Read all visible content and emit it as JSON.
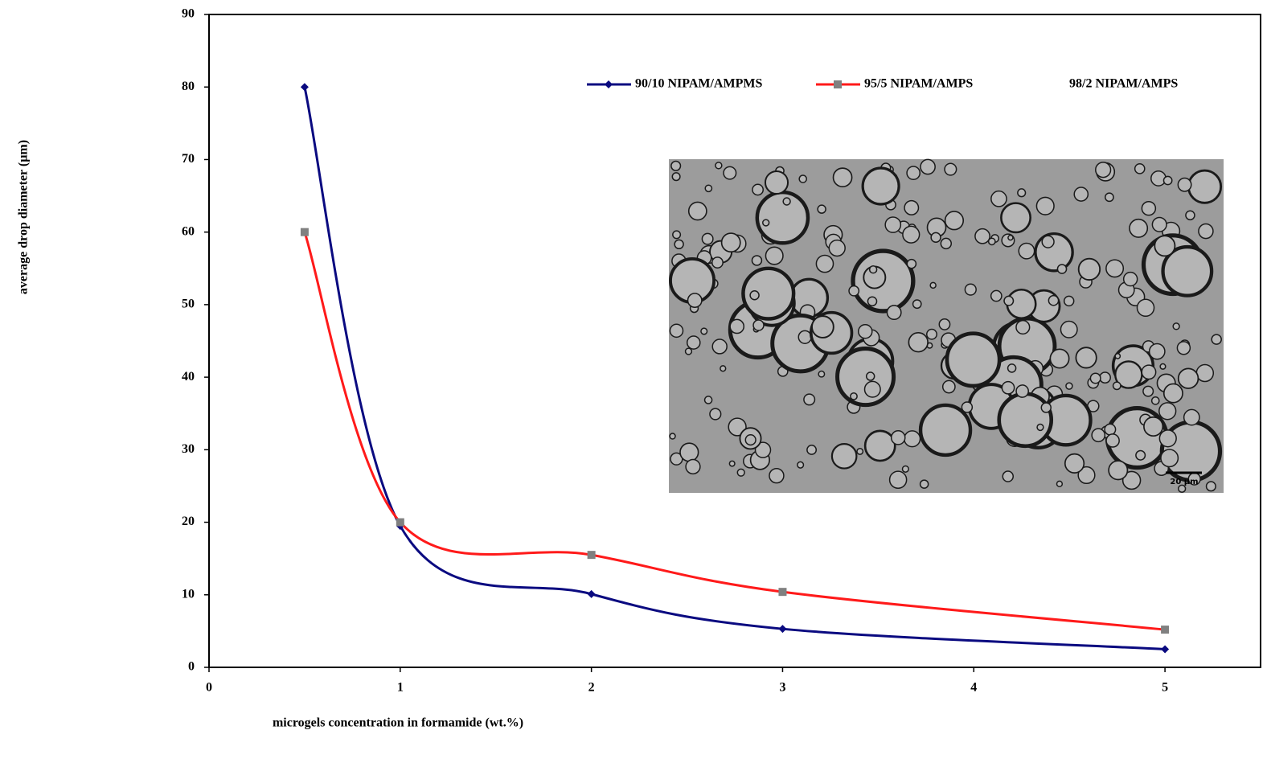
{
  "chart_data": {
    "type": "line",
    "x_label": "microgels concentration in formamide (wt.%)",
    "y_label": "average drop diameter (µm)",
    "x": [
      0.5,
      1,
      2,
      3,
      5
    ],
    "series": [
      {
        "name": "90/10 NIPAM/AMPMS",
        "color": "#0a0a80",
        "marker": "diamond",
        "marker_color": "#0a0a80",
        "values": [
          80,
          19.5,
          10.1,
          5.3,
          2.5
        ]
      },
      {
        "name": "95/5 NIPAM/AMPS",
        "color": "#ff1a1a",
        "marker": "square",
        "marker_color": "#808080",
        "values": [
          60,
          20,
          15.5,
          10.4,
          5.2
        ]
      },
      {
        "name": "98/2 NIPAM/AMPS",
        "values": [
          null,
          null,
          null,
          null,
          null
        ]
      }
    ],
    "xlim": [
      0,
      5.5
    ],
    "xticks": [
      0,
      1,
      2,
      3,
      4,
      5
    ],
    "ylim": [
      0,
      90
    ],
    "yticks": [
      0,
      10,
      20,
      30,
      40,
      50,
      60,
      70,
      80,
      90
    ],
    "smooth": true,
    "inset_scale_label": "20 µm"
  }
}
